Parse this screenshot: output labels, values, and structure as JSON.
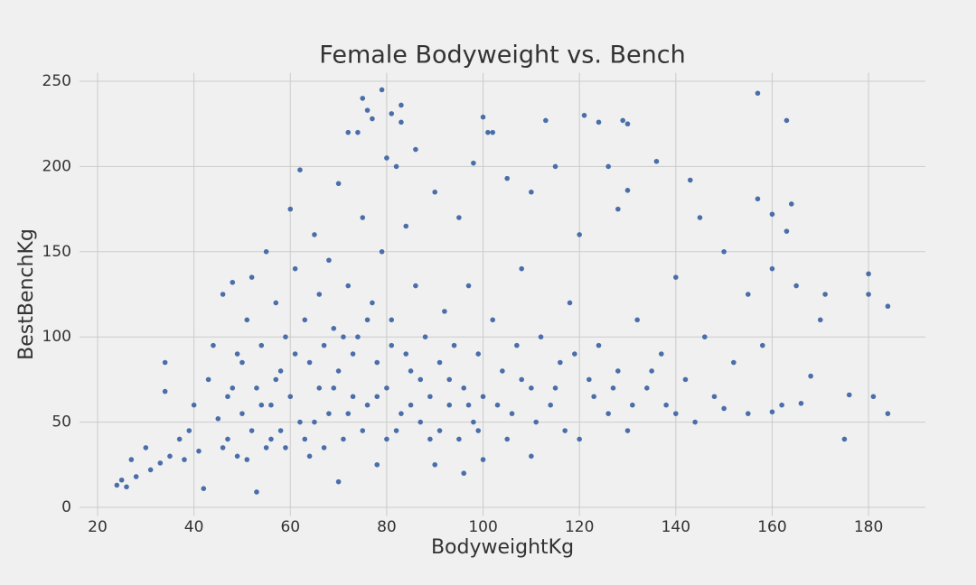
{
  "chart_data": {
    "type": "scatter",
    "title": "Female Bodyweight vs. Bench",
    "x_label": "BodyweightKg",
    "y_label": "BestBenchKg",
    "color": "#4a6ea9",
    "grid": true,
    "xlim": [
      16.25,
      191.8
    ],
    "ylim": [
      -5,
      255
    ],
    "xticks": [
      20,
      40,
      60,
      80,
      100,
      120,
      140,
      160,
      180
    ],
    "yticks": [
      0,
      50,
      100,
      150,
      200,
      250
    ],
    "x": [
      24,
      25,
      26,
      27,
      28,
      30,
      31,
      33,
      34,
      34,
      35,
      37,
      38,
      39,
      40,
      41,
      42,
      43,
      44,
      45,
      46,
      47,
      48,
      48,
      49,
      50,
      50,
      51,
      52,
      52,
      53,
      53,
      54,
      55,
      55,
      56,
      57,
      58,
      58,
      59,
      60,
      60,
      61,
      62,
      62,
      63,
      64,
      64,
      65,
      66,
      66,
      67,
      68,
      68,
      69,
      70,
      70,
      70,
      71,
      72,
      72,
      73,
      74,
      74,
      75,
      75,
      76,
      76,
      77,
      77,
      78,
      78,
      79,
      79,
      80,
      80,
      81,
      81,
      82,
      82,
      83,
      83,
      84,
      84,
      85,
      86,
      86,
      87,
      88,
      89,
      90,
      90,
      91,
      92,
      93,
      94,
      95,
      96,
      96,
      97,
      98,
      98,
      99,
      100,
      100,
      100,
      101,
      102,
      102,
      104,
      105,
      106,
      107,
      108,
      110,
      110,
      110,
      112,
      113,
      114,
      115,
      116,
      118,
      120,
      120,
      121,
      122,
      124,
      124,
      126,
      126,
      128,
      128,
      129,
      130,
      130,
      130,
      132,
      134,
      136,
      137,
      140,
      140,
      142,
      143,
      145,
      146,
      148,
      150,
      150,
      152,
      155,
      155,
      157,
      157,
      158,
      160,
      160,
      160,
      162,
      163,
      163,
      164,
      165,
      166,
      168,
      170,
      171,
      175,
      176,
      180,
      180,
      181,
      184,
      184,
      46,
      47,
      49,
      51,
      54,
      56,
      57,
      59,
      61,
      63,
      65,
      67,
      69,
      71,
      72,
      73,
      75,
      76,
      78,
      80,
      81,
      83,
      85,
      87,
      89,
      91,
      93,
      95,
      97,
      99,
      103,
      105,
      108,
      111,
      115,
      117,
      119,
      123,
      127,
      131,
      135,
      138,
      144
    ],
    "values": [
      13,
      16,
      12,
      28,
      18,
      35,
      22,
      26,
      85,
      68,
      30,
      40,
      28,
      45,
      60,
      33,
      11,
      75,
      95,
      52,
      125,
      40,
      132,
      70,
      30,
      85,
      55,
      110,
      135,
      45,
      9,
      70,
      95,
      150,
      35,
      60,
      120,
      80,
      45,
      100,
      175,
      65,
      140,
      198,
      50,
      110,
      85,
      30,
      160,
      70,
      125,
      95,
      55,
      145,
      105,
      190,
      80,
      15,
      40,
      220,
      130,
      65,
      220,
      100,
      240,
      170,
      233,
      60,
      228,
      120,
      25,
      85,
      245,
      150,
      70,
      205,
      231,
      110,
      200,
      45,
      236,
      226,
      165,
      90,
      60,
      210,
      130,
      75,
      100,
      40,
      185,
      25,
      85,
      115,
      60,
      95,
      170,
      20,
      70,
      130,
      202,
      50,
      90,
      229,
      28,
      65,
      220,
      220,
      110,
      80,
      193,
      55,
      95,
      140,
      185,
      30,
      70,
      100,
      227,
      60,
      200,
      85,
      120,
      160,
      40,
      230,
      75,
      226,
      95,
      200,
      55,
      175,
      80,
      227,
      225,
      186,
      45,
      110,
      70,
      203,
      90,
      55,
      135,
      75,
      192,
      170,
      100,
      65,
      150,
      58,
      85,
      125,
      55,
      243,
      181,
      95,
      140,
      172,
      56,
      60,
      162,
      227,
      178,
      130,
      61,
      77,
      110,
      125,
      40,
      66,
      137,
      125,
      65,
      55,
      118,
      35,
      65,
      90,
      28,
      60,
      40,
      75,
      35,
      90,
      40,
      50,
      35,
      70,
      100,
      55,
      90,
      45,
      110,
      65,
      40,
      95,
      55,
      80,
      50,
      65,
      45,
      75,
      40,
      60,
      45,
      60,
      40,
      75,
      50,
      70,
      45,
      90,
      65,
      70,
      60,
      80,
      60,
      50
    ]
  }
}
